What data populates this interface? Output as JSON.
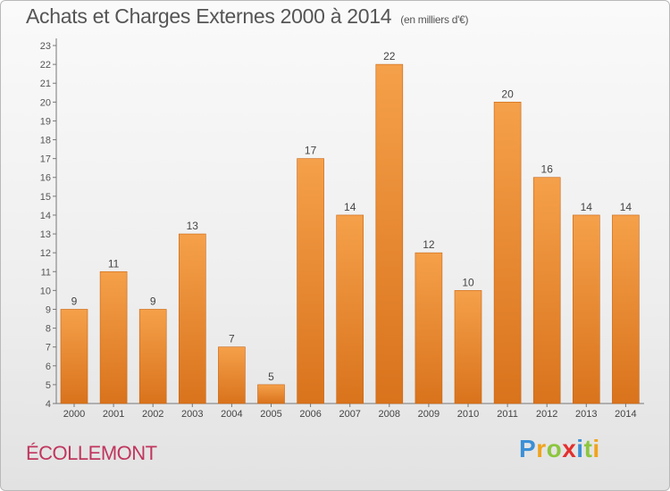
{
  "chart_data": {
    "type": "bar",
    "title": "Achats et Charges Externes 2000 à 2014",
    "subtitle": "(en milliers d'€)",
    "categories": [
      "2000",
      "2001",
      "2002",
      "2003",
      "2004",
      "2005",
      "2006",
      "2007",
      "2008",
      "2009",
      "2010",
      "2011",
      "2012",
      "2013",
      "2014"
    ],
    "values": [
      9,
      11,
      9,
      13,
      7,
      5,
      17,
      14,
      22,
      12,
      10,
      20,
      16,
      14,
      14
    ],
    "ylim": [
      4,
      23
    ],
    "yticks": [
      4,
      5,
      6,
      7,
      8,
      9,
      10,
      11,
      12,
      13,
      14,
      15,
      16,
      17,
      18,
      19,
      20,
      21,
      22,
      23
    ],
    "grid": false,
    "bar_color": "#f5a04a",
    "bar_color_dark": "#d9731c"
  },
  "commune": "ÉCOLLEMONT",
  "logo": {
    "text": "Proxiti",
    "colors": [
      "#3b8fd6",
      "#f0a31b",
      "#8cc63f",
      "#e2302d",
      "#3b8fd6",
      "#8cc63f",
      "#f0a31b"
    ]
  }
}
